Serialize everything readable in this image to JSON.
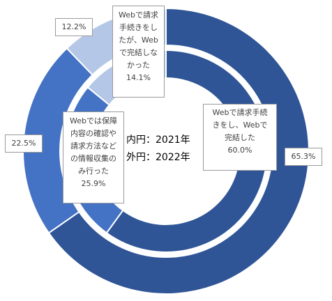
{
  "chart_data": {
    "type": "pie",
    "categories": [
      "Webで請求手続きをし、Webで完結した",
      "Webでは保障内容の確認や請求方法などの情報収集のみ行った",
      "Webで請求手続きをしたが、Webで完結しなかった"
    ],
    "series": [
      {
        "name": "2021年",
        "values": [
          60.0,
          25.9,
          14.1
        ]
      },
      {
        "name": "2022年",
        "values": [
          65.3,
          22.5,
          12.2
        ]
      }
    ],
    "units": "%",
    "colors": [
      "#2f5597",
      "#4472c4",
      "#b4c7e7"
    ],
    "center_text": [
      "内円：2021年",
      "外円：2022年"
    ],
    "outer_labels": [
      "65.3%",
      "22.5%",
      "12.2%"
    ],
    "inner_labels": [
      {
        "category": "Webで請求手続\nきをし、Webで\n完結した",
        "value": "60.0%"
      },
      {
        "category": "Webでは保障\n内容の確認や\n請求方法など\nの情報収集の\nみ行った",
        "value": "25.9%"
      },
      {
        "category": "Webで請求\n手続きをし\nたが、Web\nで完結しな\nかった",
        "value": "14.1%"
      }
    ],
    "legend": "none",
    "grid": false
  }
}
